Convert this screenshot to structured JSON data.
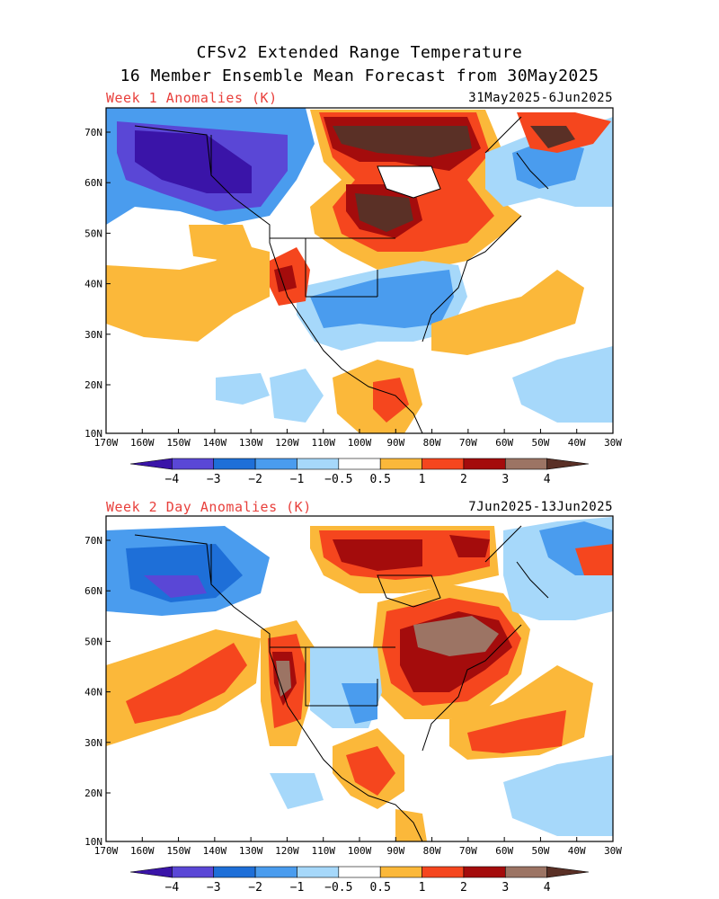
{
  "title": {
    "line1": "CFSv2 Extended Range Temperature",
    "line2": "16 Member Ensemble Mean Forecast from 30May2025"
  },
  "panels": [
    {
      "label": "Week 1 Anomalies (K)",
      "dates": "31May2025-6Jun2025",
      "lat_labels": [
        "70N",
        "60N",
        "50N",
        "40N",
        "30N",
        "20N",
        "10N"
      ],
      "lon_labels": [
        "170W",
        "160W",
        "150W",
        "140W",
        "130W",
        "120W",
        "110W",
        "100W",
        "90W",
        "80W",
        "70W",
        "60W",
        "50W",
        "40W",
        "30W"
      ]
    },
    {
      "label": "Week 2 Day Anomalies (K)",
      "dates": "7Jun2025-13Jun2025",
      "lat_labels": [
        "70N",
        "60N",
        "50N",
        "40N",
        "30N",
        "20N",
        "10N"
      ],
      "lon_labels": [
        "170W",
        "160W",
        "150W",
        "140W",
        "130W",
        "120W",
        "110W",
        "100W",
        "90W",
        "80W",
        "70W",
        "60W",
        "50W",
        "40W",
        "30W"
      ]
    }
  ],
  "colorbar": {
    "labels": [
      "−4",
      "−3",
      "−2",
      "−1",
      "−0.5",
      "0.5",
      "1",
      "2",
      "3",
      "4"
    ],
    "colors": [
      "#3a14a8",
      "#5a47d6",
      "#1e6fd8",
      "#4a9cee",
      "#a6d8fa",
      "#ffffff",
      "#fbb83a",
      "#f5461e",
      "#a40c0c",
      "#9c7464",
      "#5a3026"
    ]
  }
}
